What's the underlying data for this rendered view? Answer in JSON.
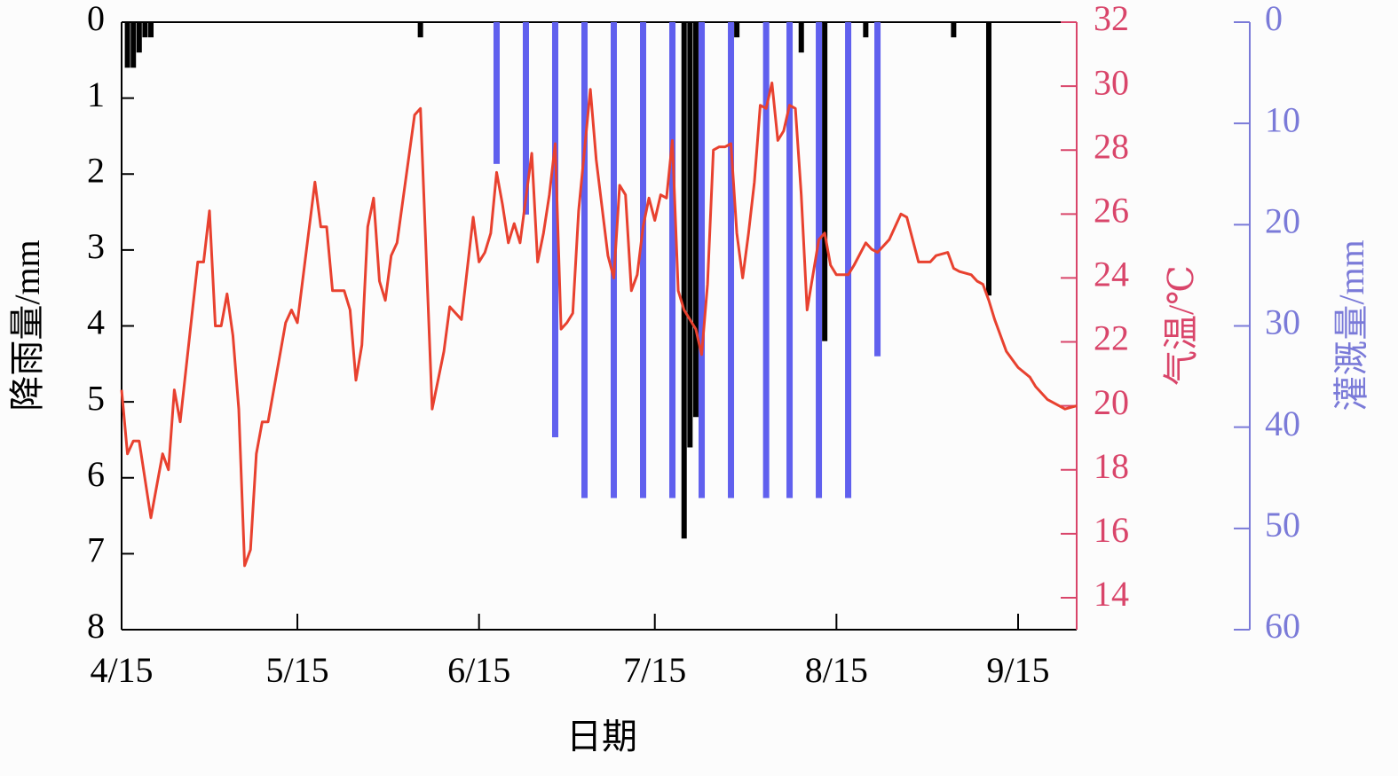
{
  "chart_data": {
    "type": "combo",
    "x_label": "日期",
    "xlim": [
      "4/15",
      "9/25"
    ],
    "xticks": [
      "4/15",
      "5/15",
      "6/15",
      "7/15",
      "8/15",
      "9/15"
    ],
    "y_label": "降雨量/mm",
    "ylim": [
      0,
      8
    ],
    "yticks": [
      0,
      1,
      2,
      3,
      4,
      5,
      6,
      7,
      8
    ],
    "y_inverted": true,
    "y2_label": "气温/℃",
    "y2lim": [
      13,
      32
    ],
    "y2ticks": [
      14,
      16,
      18,
      20,
      22,
      24,
      26,
      28,
      30,
      32
    ],
    "y2_color": "#d9456a",
    "y3_label": "灌溉量/mm",
    "y3lim": [
      0,
      60
    ],
    "y3ticks": [
      0,
      10,
      20,
      30,
      40,
      50,
      60
    ],
    "y3_inverted": true,
    "y3_color": "#7a7ad8",
    "series": [
      {
        "type": "bar",
        "axis": "y",
        "color": "#000000",
        "x": [
          "4/16",
          "4/17",
          "4/18",
          "4/19",
          "4/20",
          "6/5",
          "7/20",
          "7/21",
          "7/22",
          "7/29",
          "8/9",
          "8/13",
          "8/20",
          "9/4",
          "9/10"
        ],
        "values": [
          0.6,
          0.6,
          0.4,
          0.2,
          0.2,
          0.2,
          6.8,
          5.6,
          5.2,
          0.2,
          0.4,
          4.2,
          0.2,
          0.2,
          3.6
        ]
      },
      {
        "type": "bar",
        "axis": "y3",
        "color": "#6060ee",
        "x": [
          "6/18",
          "6/23",
          "6/28",
          "7/3",
          "7/8",
          "7/13",
          "7/18",
          "7/23",
          "7/28",
          "8/3",
          "8/7",
          "8/12",
          "8/17",
          "8/22"
        ],
        "values": [
          14,
          19,
          41,
          47,
          47,
          47,
          47,
          47,
          47,
          47,
          47,
          47,
          47,
          33
        ]
      },
      {
        "type": "line",
        "axis": "y2",
        "color": "#e8412f",
        "x": [
          "4/15",
          "4/16",
          "4/17",
          "4/18",
          "4/20",
          "4/22",
          "4/23",
          "4/24",
          "4/25",
          "4/28",
          "4/29",
          "4/30",
          "5/1",
          "5/2",
          "5/3",
          "5/4",
          "5/5",
          "5/6",
          "5/7",
          "5/8",
          "5/9",
          "5/10",
          "5/13",
          "5/14",
          "5/15",
          "5/18",
          "5/19",
          "5/20",
          "5/21",
          "5/23",
          "5/24",
          "5/25",
          "5/26",
          "5/27",
          "5/28",
          "5/29",
          "5/30",
          "5/31",
          "6/1",
          "6/4",
          "6/5",
          "6/7",
          "6/9",
          "6/10",
          "6/12",
          "6/14",
          "6/15",
          "6/16",
          "6/17",
          "6/18",
          "6/19",
          "6/20",
          "6/21",
          "6/22",
          "6/24",
          "6/25",
          "6/26",
          "6/27",
          "6/28",
          "6/29",
          "6/30",
          "7/1",
          "7/2",
          "7/4",
          "7/5",
          "7/7",
          "7/8",
          "7/9",
          "7/10",
          "7/11",
          "7/12",
          "7/13",
          "7/14",
          "7/15",
          "7/16",
          "7/17",
          "7/18",
          "7/19",
          "7/20",
          "7/22",
          "7/23",
          "7/24",
          "7/25",
          "7/26",
          "7/27",
          "7/28",
          "7/29",
          "7/30",
          "7/31",
          "8/1",
          "8/2",
          "8/3",
          "8/4",
          "8/5",
          "8/6",
          "8/7",
          "8/8",
          "8/9",
          "8/10",
          "8/11",
          "8/12",
          "8/13",
          "8/14",
          "8/15",
          "8/17",
          "8/18",
          "8/20",
          "8/21",
          "8/22",
          "8/24",
          "8/26",
          "8/27",
          "8/29",
          "8/31",
          "9/1",
          "9/3",
          "9/4",
          "9/5",
          "9/7",
          "9/8",
          "9/9",
          "9/10",
          "9/11",
          "9/13",
          "9/15",
          "9/17",
          "9/18",
          "9/20",
          "9/22",
          "9/23",
          "9/25"
        ],
        "values": [
          20.5,
          18.5,
          18.9,
          18.9,
          16.5,
          18.5,
          18.0,
          20.5,
          19.5,
          24.5,
          24.5,
          26.1,
          22.5,
          22.5,
          23.5,
          22.2,
          19.9,
          15.0,
          15.5,
          18.5,
          19.5,
          19.5,
          22.6,
          23.0,
          22.6,
          27.0,
          25.6,
          25.6,
          23.6,
          23.6,
          23.0,
          20.8,
          21.9,
          25.6,
          26.5,
          23.9,
          23.3,
          24.7,
          25.1,
          29.1,
          29.3,
          19.9,
          21.7,
          23.1,
          22.7,
          25.9,
          24.5,
          24.8,
          25.4,
          27.3,
          26.3,
          25.1,
          25.7,
          25.1,
          27.9,
          24.5,
          25.4,
          26.6,
          28.2,
          22.4,
          22.6,
          22.9,
          26.1,
          29.9,
          27.7,
          24.7,
          24.0,
          26.9,
          26.6,
          23.6,
          24.1,
          25.6,
          26.5,
          25.8,
          26.6,
          26.5,
          28.3,
          23.6,
          23.0,
          22.4,
          21.6,
          23.8,
          28.0,
          28.1,
          28.1,
          28.2,
          25.4,
          24.0,
          25.4,
          27.0,
          29.4,
          29.3,
          30.1,
          28.3,
          28.6,
          29.4,
          29.3,
          26.6,
          23.0,
          24.1,
          25.2,
          25.4,
          24.4,
          24.1,
          24.1,
          24.4,
          25.1,
          24.9,
          24.8,
          25.2,
          26.0,
          25.9,
          24.5,
          24.5,
          24.7,
          24.8,
          24.3,
          24.2,
          24.1,
          23.9,
          23.8,
          23.3,
          22.7,
          21.7,
          21.2,
          20.9,
          20.6,
          20.2,
          20.0,
          19.9,
          20.0
        ]
      }
    ]
  }
}
